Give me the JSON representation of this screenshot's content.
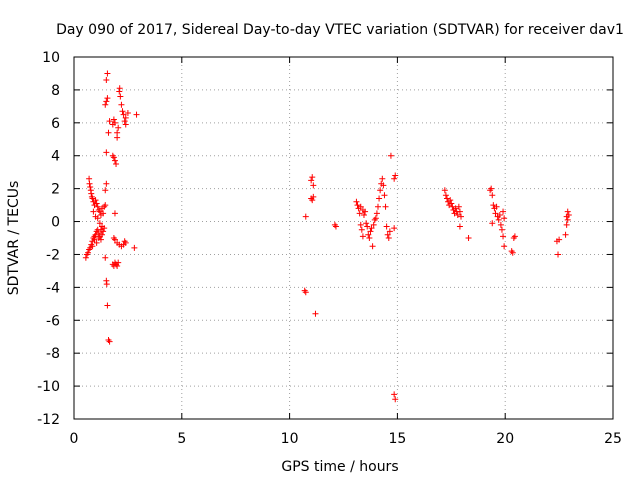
{
  "chart_data": {
    "type": "scatter",
    "title": "Day 090 of 2017, Sidereal Day-to-day VTEC variation (SDTVAR) for receiver dav1",
    "xlabel": "GPS time / hours",
    "ylabel": "SDTVAR / TECUs",
    "xlim": [
      0,
      25
    ],
    "ylim": [
      -12,
      10
    ],
    "xticks": [
      0,
      5,
      10,
      15,
      20,
      25
    ],
    "yticks": [
      -12,
      -10,
      -8,
      -6,
      -4,
      -2,
      0,
      2,
      4,
      6,
      8,
      10
    ],
    "grid": true,
    "marker": "+",
    "color": "#ff0000",
    "series": [
      {
        "name": "dav1",
        "points": [
          [
            0.55,
            -2.2
          ],
          [
            0.6,
            -2.0
          ],
          [
            0.65,
            -1.9
          ],
          [
            0.7,
            -1.7
          ],
          [
            0.75,
            -1.6
          ],
          [
            0.8,
            -1.4
          ],
          [
            0.85,
            -1.2
          ],
          [
            0.9,
            -1.0
          ],
          [
            0.95,
            -0.9
          ],
          [
            1.0,
            -0.8
          ],
          [
            1.05,
            -0.6
          ],
          [
            1.1,
            -0.5
          ],
          [
            1.15,
            -0.7
          ],
          [
            1.2,
            -0.9
          ],
          [
            1.25,
            -0.5
          ],
          [
            1.3,
            -0.3
          ],
          [
            1.35,
            -0.6
          ],
          [
            1.4,
            -0.4
          ],
          [
            0.85,
            -1.5
          ],
          [
            0.95,
            -1.1
          ],
          [
            1.05,
            -1.3
          ],
          [
            1.15,
            -1.0
          ],
          [
            1.25,
            -1.1
          ],
          [
            1.3,
            -0.8
          ],
          [
            0.7,
            2.6
          ],
          [
            0.72,
            2.3
          ],
          [
            0.75,
            2.1
          ],
          [
            0.78,
            1.9
          ],
          [
            0.8,
            1.7
          ],
          [
            0.83,
            1.5
          ],
          [
            0.86,
            1.4
          ],
          [
            0.9,
            1.2
          ],
          [
            0.95,
            1.0
          ],
          [
            1.0,
            1.3
          ],
          [
            1.05,
            1.1
          ],
          [
            1.1,
            0.9
          ],
          [
            1.15,
            0.7
          ],
          [
            1.2,
            0.6
          ],
          [
            1.25,
            0.4
          ],
          [
            1.3,
            0.8
          ],
          [
            1.35,
            0.5
          ],
          [
            1.4,
            0.9
          ],
          [
            1.45,
            1.0
          ],
          [
            0.9,
            0.6
          ],
          [
            1.0,
            0.3
          ],
          [
            1.1,
            0.2
          ],
          [
            1.2,
            -0.1
          ],
          [
            1.45,
            1.9
          ],
          [
            1.5,
            2.3
          ],
          [
            1.45,
            -2.2
          ],
          [
            1.5,
            -3.6
          ],
          [
            1.52,
            -3.8
          ],
          [
            1.55,
            -5.1
          ],
          [
            1.6,
            -7.2
          ],
          [
            1.65,
            -7.3
          ],
          [
            1.5,
            4.2
          ],
          [
            1.45,
            7.1
          ],
          [
            1.5,
            7.3
          ],
          [
            1.55,
            7.5
          ],
          [
            1.5,
            8.6
          ],
          [
            1.55,
            9.0
          ],
          [
            1.6,
            5.4
          ],
          [
            1.65,
            6.1
          ],
          [
            1.8,
            5.9
          ],
          [
            1.85,
            6.2
          ],
          [
            1.9,
            6.0
          ],
          [
            1.85,
            3.9
          ],
          [
            1.9,
            3.7
          ],
          [
            1.95,
            3.5
          ],
          [
            1.8,
            4.0
          ],
          [
            2.0,
            5.4
          ],
          [
            2.0,
            5.1
          ],
          [
            2.05,
            5.7
          ],
          [
            2.1,
            7.9
          ],
          [
            2.12,
            8.1
          ],
          [
            2.15,
            7.6
          ],
          [
            2.2,
            7.1
          ],
          [
            2.25,
            6.7
          ],
          [
            2.3,
            6.5
          ],
          [
            2.35,
            6.1
          ],
          [
            2.4,
            5.9
          ],
          [
            2.4,
            6.3
          ],
          [
            2.5,
            6.6
          ],
          [
            1.9,
            0.5
          ],
          [
            1.85,
            -1.0
          ],
          [
            1.9,
            -1.1
          ],
          [
            2.0,
            -1.3
          ],
          [
            2.1,
            -1.4
          ],
          [
            2.2,
            -1.5
          ],
          [
            2.3,
            -1.4
          ],
          [
            2.35,
            -1.2
          ],
          [
            2.4,
            -1.3
          ],
          [
            1.8,
            -2.6
          ],
          [
            1.85,
            -2.7
          ],
          [
            1.9,
            -2.5
          ],
          [
            1.95,
            -2.6
          ],
          [
            2.0,
            -2.7
          ],
          [
            2.05,
            -2.5
          ],
          [
            2.8,
            -1.6
          ],
          [
            2.9,
            6.5
          ],
          [
            10.7,
            -4.2
          ],
          [
            10.75,
            -4.3
          ],
          [
            10.75,
            0.3
          ],
          [
            11.0,
            2.5
          ],
          [
            11.05,
            2.7
          ],
          [
            11.1,
            2.2
          ],
          [
            11.0,
            1.4
          ],
          [
            11.05,
            1.3
          ],
          [
            11.1,
            1.5
          ],
          [
            11.2,
            -5.6
          ],
          [
            12.1,
            -0.2
          ],
          [
            12.15,
            -0.3
          ],
          [
            13.1,
            1.2
          ],
          [
            13.15,
            1.0
          ],
          [
            13.2,
            0.8
          ],
          [
            13.25,
            0.5
          ],
          [
            13.3,
            -0.2
          ],
          [
            13.35,
            -0.5
          ],
          [
            13.4,
            -0.9
          ],
          [
            13.3,
            0.9
          ],
          [
            13.4,
            0.7
          ],
          [
            13.45,
            0.4
          ],
          [
            13.5,
            0.6
          ],
          [
            13.55,
            -0.1
          ],
          [
            13.6,
            -0.3
          ],
          [
            13.65,
            -0.8
          ],
          [
            13.7,
            -1.0
          ],
          [
            13.75,
            -0.6
          ],
          [
            13.8,
            -0.4
          ],
          [
            13.85,
            -1.5
          ],
          [
            13.9,
            -0.2
          ],
          [
            13.95,
            0.1
          ],
          [
            14.0,
            0.2
          ],
          [
            14.05,
            0.5
          ],
          [
            14.1,
            0.9
          ],
          [
            14.15,
            1.4
          ],
          [
            14.2,
            1.9
          ],
          [
            14.25,
            2.3
          ],
          [
            14.3,
            2.6
          ],
          [
            14.35,
            2.2
          ],
          [
            14.4,
            1.6
          ],
          [
            14.45,
            0.9
          ],
          [
            14.5,
            -0.3
          ],
          [
            14.55,
            -0.8
          ],
          [
            14.6,
            -1.0
          ],
          [
            14.65,
            -0.6
          ],
          [
            14.7,
            4.0
          ],
          [
            14.85,
            2.6
          ],
          [
            14.9,
            2.8
          ],
          [
            14.85,
            -0.4
          ],
          [
            14.85,
            -10.5
          ],
          [
            14.9,
            -10.8
          ],
          [
            17.2,
            1.9
          ],
          [
            17.25,
            1.6
          ],
          [
            17.3,
            1.4
          ],
          [
            17.35,
            1.2
          ],
          [
            17.4,
            1.0
          ],
          [
            17.45,
            1.3
          ],
          [
            17.5,
            1.1
          ],
          [
            17.55,
            0.9
          ],
          [
            17.6,
            0.7
          ],
          [
            17.65,
            0.5
          ],
          [
            17.7,
            0.8
          ],
          [
            17.75,
            0.6
          ],
          [
            17.8,
            0.4
          ],
          [
            17.85,
            0.9
          ],
          [
            17.9,
            0.6
          ],
          [
            17.95,
            0.3
          ],
          [
            17.9,
            -0.3
          ],
          [
            18.3,
            -1.0
          ],
          [
            19.3,
            1.9
          ],
          [
            19.35,
            2.0
          ],
          [
            19.4,
            1.6
          ],
          [
            19.45,
            1.0
          ],
          [
            19.5,
            0.8
          ],
          [
            19.55,
            0.5
          ],
          [
            19.6,
            0.9
          ],
          [
            19.65,
            0.3
          ],
          [
            19.7,
            0.1
          ],
          [
            19.75,
            0.4
          ],
          [
            19.8,
            -0.2
          ],
          [
            19.85,
            -0.5
          ],
          [
            19.9,
            -0.9
          ],
          [
            19.95,
            -1.5
          ],
          [
            19.9,
            0.6
          ],
          [
            19.95,
            0.2
          ],
          [
            19.4,
            -0.1
          ],
          [
            20.3,
            -1.8
          ],
          [
            20.35,
            -1.9
          ],
          [
            20.4,
            -1.0
          ],
          [
            20.45,
            -0.9
          ],
          [
            22.4,
            -1.2
          ],
          [
            22.45,
            -2.0
          ],
          [
            22.5,
            -1.1
          ],
          [
            22.8,
            -0.8
          ],
          [
            22.85,
            -0.2
          ],
          [
            22.9,
            0.1
          ],
          [
            22.95,
            0.4
          ],
          [
            22.85,
            0.3
          ],
          [
            22.9,
            0.6
          ]
        ]
      }
    ]
  }
}
